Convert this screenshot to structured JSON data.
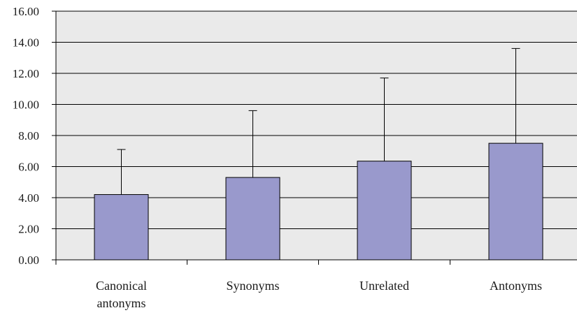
{
  "chart_data": {
    "type": "bar",
    "title": "",
    "xlabel": "",
    "ylabel": "",
    "categories": [
      [
        "Canonical",
        "antonyms"
      ],
      [
        "Synonyms"
      ],
      [
        "Unrelated"
      ],
      [
        "Antonyms"
      ]
    ],
    "values": [
      4.2,
      5.3,
      6.35,
      7.5
    ],
    "error_upper": [
      7.1,
      9.6,
      11.7,
      13.6
    ],
    "ylim": [
      0,
      16
    ],
    "yticks": [
      "0.00",
      "2.00",
      "4.00",
      "6.00",
      "8.00",
      "10.00",
      "12.00",
      "14.00",
      "16.00"
    ],
    "grid": true,
    "legend": "none",
    "colors": {
      "plot_background": "#eaeaea",
      "bar_fill": "#9999cc",
      "bar_stroke": "#000000",
      "gridline": "#000000"
    }
  }
}
